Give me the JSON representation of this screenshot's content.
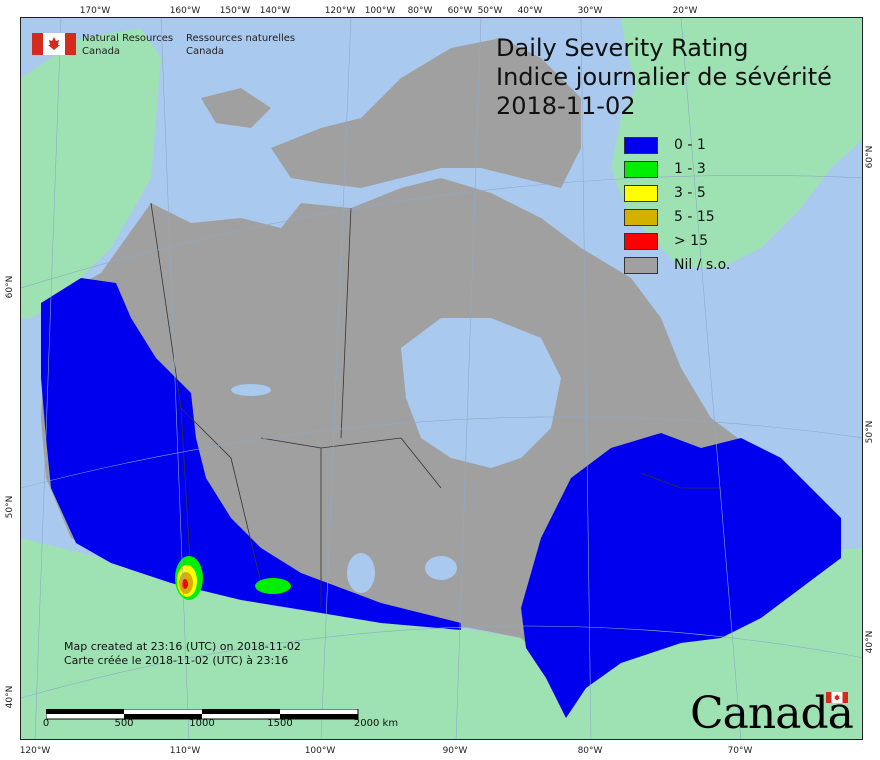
{
  "agency": {
    "en_line1": "Natural Resources",
    "en_line2": "Canada",
    "fr_line1": "Ressources naturelles",
    "fr_line2": "Canada"
  },
  "title": {
    "en": "Daily Severity Rating",
    "fr": "Indice journalier de sévérité",
    "date": "2018-11-02"
  },
  "legend": [
    {
      "label": "0 - 1",
      "color": "#0000ee"
    },
    {
      "label": "1 - 3",
      "color": "#00ee00"
    },
    {
      "label": "3 - 5",
      "color": "#ffff00"
    },
    {
      "label": "5 - 15",
      "color": "#d4b000"
    },
    {
      "label": "> 15",
      "color": "#ff0000"
    },
    {
      "label": "Nil / s.o.",
      "color": "#a0a0a0"
    }
  ],
  "colors": {
    "ocean": "#aac9ee",
    "foreign_land": "#9ee2b4",
    "canada_nil": "#a0a0a0",
    "water_inland": "#aac9ee",
    "dsr_0_1": "#0000ee",
    "dsr_1_3": "#00ee00",
    "dsr_3_5": "#ffff00",
    "dsr_5_15": "#d4b000",
    "dsr_gt_15": "#ff0000"
  },
  "graticule": {
    "top_labels": [
      "170°W",
      "160°W",
      "150°W",
      "140°W",
      "120°W",
      "100°W",
      "80°W",
      "60°W",
      "50°W",
      "40°W",
      "30°W",
      "20°W"
    ],
    "bottom_labels": [
      "120°W",
      "110°W",
      "100°W",
      "90°W",
      "80°W",
      "70°W"
    ],
    "left_labels": [
      "60°N",
      "50°N",
      "40°N"
    ],
    "right_labels": [
      "60°N",
      "50°N",
      "40°N"
    ]
  },
  "credits": {
    "en": "Map created at 23:16 (UTC) on 2018-11-02",
    "fr": "Carte créée le 2018-11-02 (UTC) à 23:16"
  },
  "scalebar": {
    "labels": [
      "0",
      "500",
      "1000",
      "1500",
      "2000 km"
    ]
  },
  "wordmark": "Canada"
}
